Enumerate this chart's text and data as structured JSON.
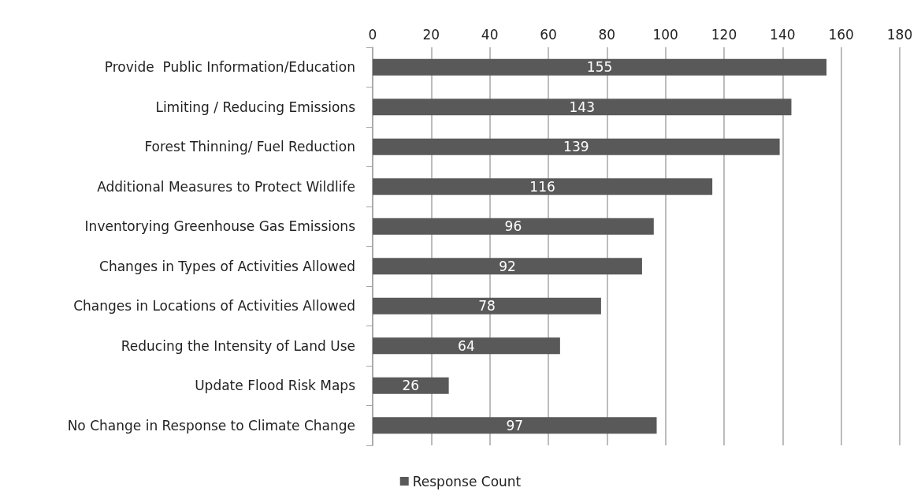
{
  "chart_data": {
    "type": "bar",
    "orientation": "horizontal",
    "categories": [
      "Provide  Public Information/Education",
      "Limiting / Reducing Emissions",
      "Forest Thinning/ Fuel Reduction",
      "Additional Measures to Protect Wildlife",
      "Inventorying Greenhouse Gas Emissions",
      "Changes in Types of Activities Allowed",
      "Changes in Locations of Activities Allowed",
      "Reducing the Intensity of Land Use",
      "Update Flood Risk Maps",
      "No Change in Response to Climate Change"
    ],
    "series": [
      {
        "name": "Response Count",
        "color": "#595959",
        "values": [
          155,
          143,
          139,
          116,
          96,
          92,
          78,
          64,
          26,
          97
        ]
      }
    ],
    "xlim": [
      0,
      180
    ],
    "xticks": [
      0,
      20,
      40,
      60,
      80,
      100,
      120,
      140,
      160,
      180
    ],
    "grid": "x",
    "legend": "bottom",
    "data_labels": true
  }
}
